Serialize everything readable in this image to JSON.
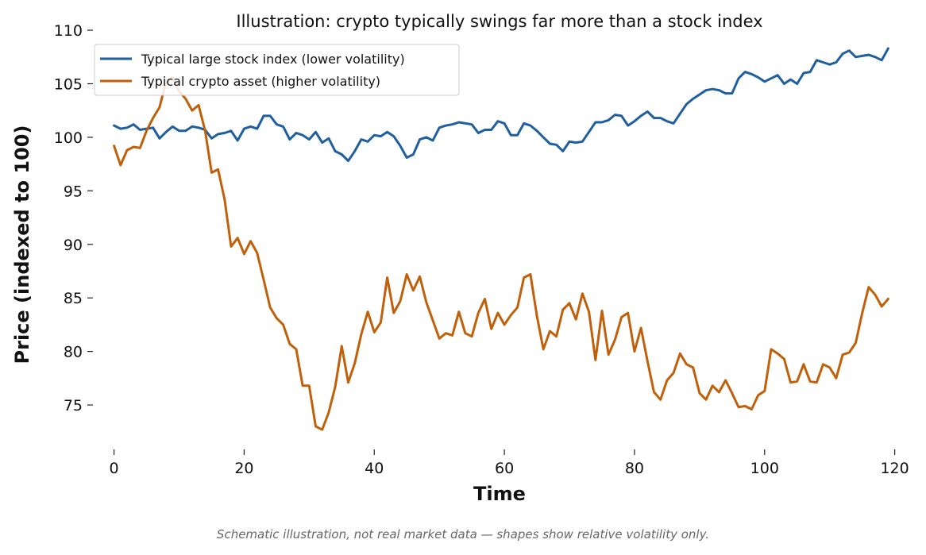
{
  "chart_data": {
    "type": "line",
    "title": "Illustration: crypto typically swings far more than a stock index",
    "xlabel": "Time",
    "ylabel": "Price (indexed to 100)",
    "xlim": [
      -3,
      122
    ],
    "ylim": [
      71.0,
      110.3
    ],
    "xticks": [
      0,
      20,
      40,
      60,
      80,
      100,
      120
    ],
    "yticks": [
      75,
      80,
      85,
      90,
      95,
      100,
      105,
      110
    ],
    "grid": false,
    "legend_position": "top-left",
    "x": [
      0,
      1,
      2,
      3,
      4,
      5,
      6,
      7,
      8,
      9,
      10,
      11,
      12,
      13,
      14,
      15,
      16,
      17,
      18,
      19,
      20,
      21,
      22,
      23,
      24,
      25,
      26,
      27,
      28,
      29,
      30,
      31,
      32,
      33,
      34,
      35,
      36,
      37,
      38,
      39,
      40,
      41,
      42,
      43,
      44,
      45,
      46,
      47,
      48,
      49,
      50,
      51,
      52,
      53,
      54,
      55,
      56,
      57,
      58,
      59,
      60,
      61,
      62,
      63,
      64,
      65,
      66,
      67,
      68,
      69,
      70,
      71,
      72,
      73,
      74,
      75,
      76,
      77,
      78,
      79,
      80,
      81,
      82,
      83,
      84,
      85,
      86,
      87,
      88,
      89,
      90,
      91,
      92,
      93,
      94,
      95,
      96,
      97,
      98,
      99,
      100,
      101,
      102,
      103,
      104,
      105,
      106,
      107,
      108,
      109,
      110,
      111,
      112,
      113,
      114,
      115,
      116,
      117,
      118,
      119
    ],
    "series": [
      {
        "name": "Typical large stock index (lower volatility)",
        "color": "#1f5fa0",
        "values": [
          101.1,
          100.8,
          100.9,
          101.2,
          100.7,
          100.8,
          100.9,
          99.9,
          100.5,
          101.0,
          100.6,
          100.6,
          101.0,
          100.9,
          100.7,
          99.9,
          100.3,
          100.4,
          100.6,
          99.7,
          100.8,
          101.0,
          100.8,
          102.0,
          102.0,
          101.2,
          101.0,
          99.8,
          100.4,
          100.2,
          99.8,
          100.5,
          99.5,
          99.9,
          98.7,
          98.4,
          97.8,
          98.7,
          99.8,
          99.6,
          100.2,
          100.1,
          100.5,
          100.1,
          99.2,
          98.1,
          98.4,
          99.8,
          100.0,
          99.7,
          100.9,
          101.1,
          101.2,
          101.4,
          101.3,
          101.2,
          100.4,
          100.7,
          100.7,
          101.5,
          101.3,
          100.2,
          100.2,
          101.3,
          101.1,
          100.6,
          100.0,
          99.4,
          99.3,
          98.7,
          99.6,
          99.5,
          99.6,
          100.5,
          101.4,
          101.4,
          101.6,
          102.1,
          102.0,
          101.1,
          101.5,
          102.0,
          102.4,
          101.8,
          101.8,
          101.5,
          101.3,
          102.2,
          103.1,
          103.6,
          104.0,
          104.4,
          104.5,
          104.4,
          104.1,
          104.1,
          105.5,
          106.1,
          105.9,
          105.6,
          105.2,
          105.5,
          105.8,
          105.0,
          105.4,
          105.0,
          106.0,
          106.1,
          107.2,
          107.0,
          106.8,
          107.0,
          107.8,
          108.1,
          107.5,
          107.6,
          107.7,
          107.5,
          107.2,
          108.3
        ]
      },
      {
        "name": "Typical crypto asset (higher volatility)",
        "color": "#c0600a",
        "values": [
          99.2,
          97.4,
          98.8,
          99.1,
          99.0,
          100.6,
          101.8,
          102.8,
          105.2,
          105.6,
          104.3,
          103.6,
          102.5,
          103.0,
          100.6,
          96.7,
          97.0,
          94.2,
          89.8,
          90.6,
          89.1,
          90.3,
          89.2,
          86.7,
          84.1,
          83.1,
          82.5,
          80.7,
          80.2,
          76.8,
          76.8,
          73.0,
          72.7,
          74.3,
          76.7,
          80.5,
          77.1,
          78.9,
          81.6,
          83.7,
          81.8,
          82.7,
          86.9,
          83.6,
          84.7,
          87.2,
          85.7,
          87.0,
          84.6,
          82.9,
          81.2,
          81.7,
          81.5,
          83.7,
          81.7,
          81.4,
          83.6,
          84.9,
          82.1,
          83.6,
          82.5,
          83.4,
          84.1,
          86.9,
          87.2,
          83.3,
          80.2,
          81.9,
          81.4,
          83.9,
          84.5,
          83.0,
          85.4,
          83.7,
          79.2,
          83.8,
          79.7,
          81.1,
          83.2,
          83.6,
          80.0,
          82.2,
          79.1,
          76.2,
          75.5,
          77.3,
          78.0,
          79.8,
          78.8,
          78.5,
          76.1,
          75.5,
          76.8,
          76.2,
          77.3,
          76.1,
          74.8,
          74.9,
          74.6,
          75.9,
          76.3,
          80.2,
          79.8,
          79.3,
          77.1,
          77.2,
          78.8,
          77.2,
          77.1,
          78.8,
          78.5,
          77.5,
          79.7,
          79.9,
          80.8,
          83.6,
          86.0,
          85.3,
          84.2,
          84.9
        ]
      }
    ],
    "caption": "Schematic illustration, not real market data — shapes show relative volatility only."
  }
}
